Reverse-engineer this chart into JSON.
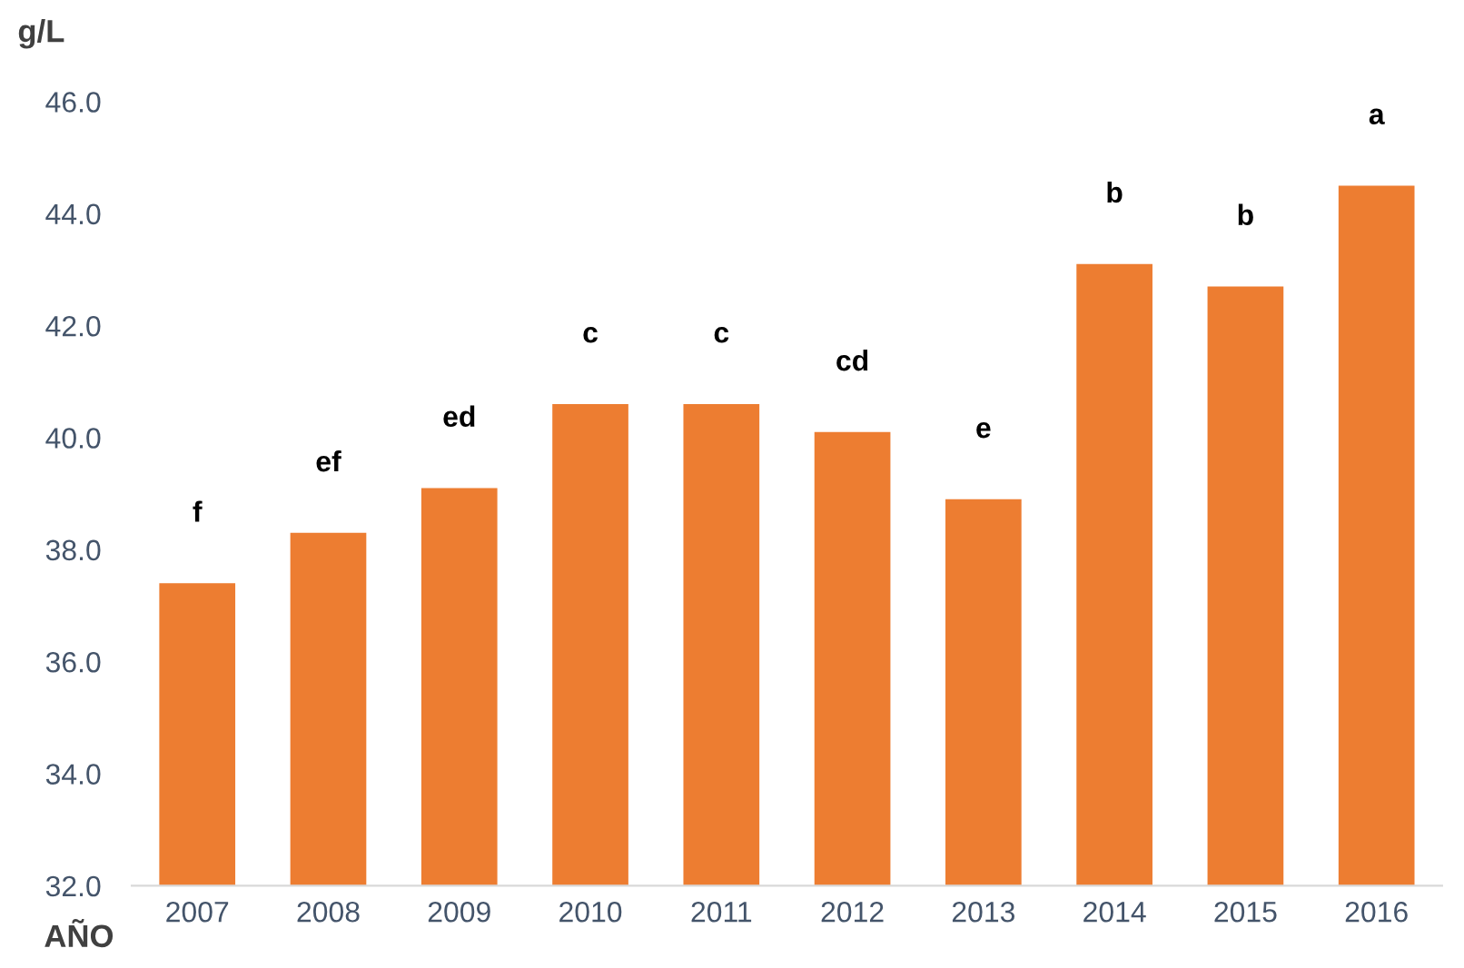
{
  "chart_data": {
    "type": "bar",
    "ylabel": "g/L",
    "xlabel": "AÑO",
    "categories": [
      "2007",
      "2008",
      "2009",
      "2010",
      "2011",
      "2012",
      "2013",
      "2014",
      "2015",
      "2016"
    ],
    "values": [
      37.4,
      38.3,
      39.1,
      40.6,
      40.6,
      40.1,
      38.9,
      43.1,
      42.7,
      44.5
    ],
    "color": "#ed7d31",
    "ylim": [
      32.0,
      46.0
    ],
    "yticks": [
      {
        "value": 32,
        "label": "32.0"
      },
      {
        "value": 34,
        "label": "34.0"
      },
      {
        "value": 36,
        "label": "36.0"
      },
      {
        "value": 38,
        "label": "38.0"
      },
      {
        "value": 40,
        "label": "40.0"
      },
      {
        "value": 42,
        "label": "42.0"
      },
      {
        "value": 44,
        "label": "44.0"
      },
      {
        "value": 46,
        "label": "46.0"
      }
    ],
    "grid": false,
    "annotations": [
      {
        "text": "f",
        "x": "2007",
        "y": 37.4
      },
      {
        "text": "ef",
        "x": "2008",
        "y": 38.3
      },
      {
        "text": "ed",
        "x": "2009",
        "y": 39.1
      },
      {
        "text": "c",
        "x": "2010",
        "y": 40.6
      },
      {
        "text": "c",
        "x": "2011",
        "y": 40.6
      },
      {
        "text": "cd",
        "x": "2012",
        "y": 40.1
      },
      {
        "text": "e",
        "x": "2013",
        "y": 38.9
      },
      {
        "text": "b",
        "x": "2014",
        "y": 43.1
      },
      {
        "text": "b",
        "x": "2015",
        "y": 42.7
      },
      {
        "text": "a",
        "x": "2016",
        "y": 44.5
      }
    ]
  }
}
